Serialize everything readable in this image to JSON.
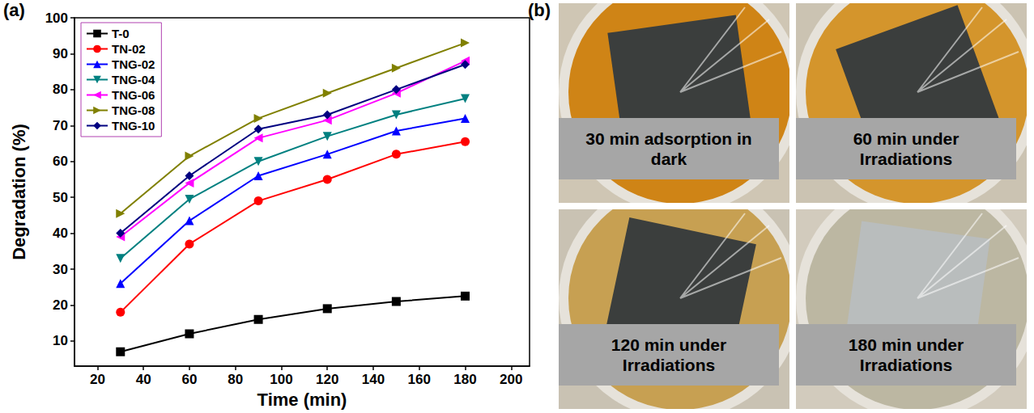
{
  "panel_labels": [
    "(a)",
    "(b)"
  ],
  "chart_data": {
    "type": "line",
    "x_label": "Time (min)",
    "y_label": "Degradation (%)",
    "x": [
      30,
      60,
      90,
      120,
      150,
      180
    ],
    "xlim": [
      10,
      208
    ],
    "xticks": [
      20,
      40,
      60,
      80,
      100,
      120,
      140,
      160,
      180,
      200
    ],
    "ylim": [
      3,
      100
    ],
    "yticks": [
      10,
      20,
      30,
      40,
      50,
      60,
      70,
      80,
      90,
      100
    ],
    "grid": false,
    "legend": "upper left",
    "series": [
      {
        "name": "T-0",
        "color": "#000000",
        "marker": "square",
        "values": [
          7,
          12,
          16,
          19,
          21,
          22.5
        ]
      },
      {
        "name": "TN-02",
        "color": "#ff0000",
        "marker": "circle",
        "values": [
          18,
          37,
          49,
          55,
          62,
          65.5
        ]
      },
      {
        "name": "TNG-02",
        "color": "#0000ff",
        "marker": "triangle-up",
        "values": [
          26,
          43.5,
          56,
          62,
          68.5,
          72
        ]
      },
      {
        "name": "TNG-04",
        "color": "#008080",
        "marker": "triangle-down",
        "values": [
          33,
          49.5,
          60,
          67,
          73,
          77.5
        ]
      },
      {
        "name": "TNG-06",
        "color": "#ff00ff",
        "marker": "triangle-left",
        "values": [
          39,
          54,
          66.5,
          71.5,
          79,
          88
        ]
      },
      {
        "name": "TNG-08",
        "color": "#808000",
        "marker": "triangle-right",
        "values": [
          45.5,
          61.5,
          72,
          79,
          86,
          93
        ]
      },
      {
        "name": "TNG-10",
        "color": "#000080",
        "marker": "diamond",
        "values": [
          40,
          56,
          69,
          73,
          80,
          87
        ]
      }
    ]
  },
  "photos": {
    "captions": [
      "30 min adsorption in dark",
      "60 min under Irradiations",
      "120 min under Irradiations",
      "180 min under Irradiations"
    ]
  }
}
